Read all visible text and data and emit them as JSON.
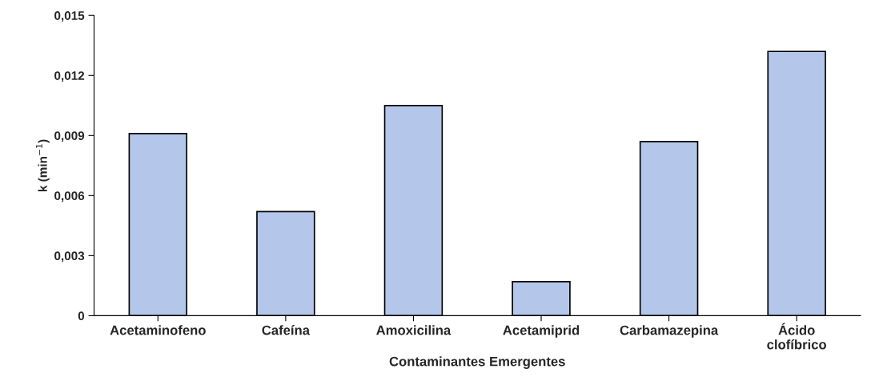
{
  "chart_data": {
    "type": "bar",
    "xlabel": "Contaminantes Emergentes",
    "ylabel": "k (min$^{−1}$)",
    "categories": [
      "Acetaminofeno",
      "Cafeína",
      "Amoxicilina",
      "Acetamiprid",
      "Carbamazepina",
      "Ácido\nclofíbrico"
    ],
    "values": [
      0.0091,
      0.0052,
      0.0105,
      0.0017,
      0.0087,
      0.0132
    ],
    "color": "#b4c6ea",
    "ylim": [
      0,
      0.015
    ],
    "yticks": [
      {
        "value": 0,
        "label": "0"
      },
      {
        "value": 0.003,
        "label": "0,003"
      },
      {
        "value": 0.006,
        "label": "0,006"
      },
      {
        "value": 0.009,
        "label": "0,009"
      },
      {
        "value": 0.012,
        "label": "0,012"
      },
      {
        "value": 0.015,
        "label": "0,015"
      }
    ],
    "grid": false
  }
}
